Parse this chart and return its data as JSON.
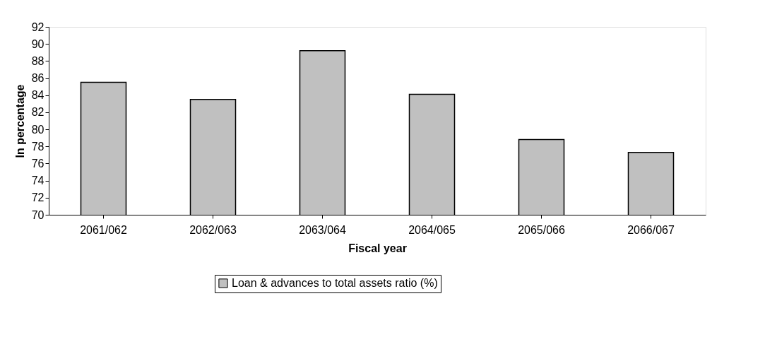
{
  "chart_data": {
    "type": "bar",
    "xlabel": "Fiscal year",
    "ylabel": "In percentage",
    "categories": [
      "2061/062",
      "2062/063",
      "2063/064",
      "2064/065",
      "2065/066",
      "2066/067"
    ],
    "series": [
      {
        "name": "Loan & advances to total assets ratio (%)",
        "color": "#c0c0c0",
        "values": [
          85.5,
          83.5,
          89.2,
          84.1,
          78.8,
          77.3
        ]
      }
    ],
    "ylim": [
      70,
      92
    ],
    "yticks": [
      70,
      72,
      74,
      76,
      78,
      80,
      82,
      84,
      86,
      88,
      90,
      92
    ],
    "grid": false,
    "legend": "bottom"
  }
}
